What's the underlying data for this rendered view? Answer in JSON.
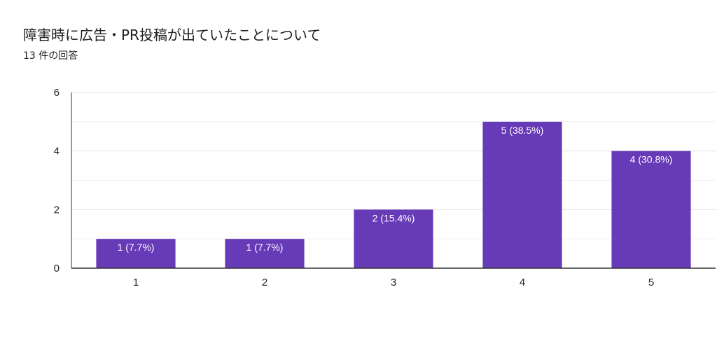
{
  "header": {
    "title": "障害時に広告・PR投稿が出ていたことについて",
    "subtitle": "13 件の回答"
  },
  "colors": {
    "bar": "#673ab7",
    "grid": "#e6e6e6",
    "axis": "#333333",
    "text": "#222222"
  },
  "chart_data": {
    "type": "bar",
    "title": "障害時に広告・PR投稿が出ていたことについて",
    "xlabel": "",
    "ylabel": "",
    "categories": [
      "1",
      "2",
      "3",
      "4",
      "5"
    ],
    "values": [
      1,
      1,
      2,
      5,
      4
    ],
    "data_labels": [
      "1 (7.7%)",
      "1 (7.7%)",
      "2 (15.4%)",
      "5 (38.5%)",
      "4 (30.8%)"
    ],
    "ylim": [
      0,
      6
    ],
    "yticks": [
      "0",
      "2",
      "4",
      "6"
    ],
    "ytick_values": [
      0,
      2,
      4,
      6
    ],
    "grid": true,
    "legend": "none"
  }
}
